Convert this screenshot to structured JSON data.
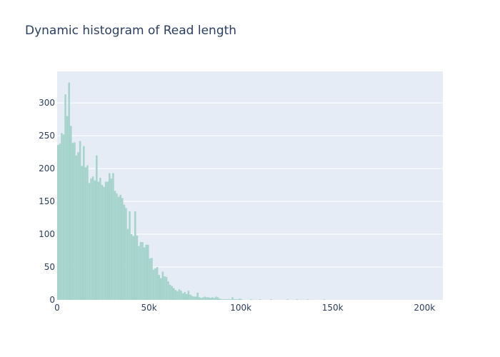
{
  "chart_data": {
    "type": "bar",
    "title": "Dynamic histogram of Read length",
    "xlabel": "",
    "ylabel": "",
    "bin_width": 1000,
    "xlim": [
      0,
      210000
    ],
    "ylim": [
      0,
      348
    ],
    "x_ticks": [
      {
        "value": 0,
        "label": "0"
      },
      {
        "value": 50000,
        "label": "50k"
      },
      {
        "value": 100000,
        "label": "100k"
      },
      {
        "value": 150000,
        "label": "150k"
      },
      {
        "value": 200000,
        "label": "200k"
      }
    ],
    "y_ticks": [
      {
        "value": 0,
        "label": "0"
      },
      {
        "value": 50,
        "label": "50"
      },
      {
        "value": 100,
        "label": "100"
      },
      {
        "value": 150,
        "label": "150"
      },
      {
        "value": 200,
        "label": "200"
      },
      {
        "value": 250,
        "label": "250"
      },
      {
        "value": 300,
        "label": "300"
      }
    ],
    "grid": true,
    "colors": {
      "bar": "#a6d4cd",
      "plot_bg": "#e5ecf6",
      "grid": "#ffffff",
      "text": "#2a3f5f"
    },
    "bin_start": [
      0,
      1000,
      2000,
      3000,
      4000,
      5000,
      6000,
      7000,
      8000,
      9000,
      10000,
      11000,
      12000,
      13000,
      14000,
      15000,
      16000,
      17000,
      18000,
      19000,
      20000,
      21000,
      22000,
      23000,
      24000,
      25000,
      26000,
      27000,
      28000,
      29000,
      30000,
      31000,
      32000,
      33000,
      34000,
      35000,
      36000,
      37000,
      38000,
      39000,
      40000,
      41000,
      42000,
      43000,
      44000,
      45000,
      46000,
      47000,
      48000,
      49000,
      50000,
      51000,
      52000,
      53000,
      54000,
      55000,
      56000,
      57000,
      58000,
      59000,
      60000,
      61000,
      62000,
      63000,
      64000,
      65000,
      66000,
      67000,
      68000,
      69000,
      70000,
      71000,
      72000,
      73000,
      74000,
      75000,
      76000,
      77000,
      78000,
      79000,
      80000,
      81000,
      82000,
      83000,
      84000,
      85000,
      86000,
      87000,
      88000,
      89000,
      90000,
      91000,
      92000,
      93000,
      94000,
      95000,
      96000,
      97000,
      98000,
      99000,
      100000,
      105000,
      110000,
      116000,
      125000,
      130000,
      136000,
      145000
    ],
    "values": [
      236,
      238,
      254,
      252,
      313,
      280,
      331,
      265,
      239,
      240,
      220,
      225,
      242,
      204,
      234,
      202,
      205,
      178,
      185,
      188,
      182,
      220,
      180,
      186,
      175,
      172,
      180,
      180,
      193,
      185,
      193,
      166,
      162,
      157,
      160,
      155,
      145,
      140,
      108,
      135,
      100,
      97,
      135,
      98,
      82,
      88,
      88,
      80,
      84,
      84,
      63,
      64,
      46,
      48,
      50,
      38,
      33,
      43,
      36,
      35,
      28,
      23,
      21,
      18,
      15,
      13,
      16,
      14,
      10,
      12,
      9,
      14,
      8,
      6,
      5,
      5,
      11,
      4,
      3,
      4,
      5,
      4,
      4,
      3,
      4,
      3,
      5,
      4,
      2,
      1,
      1,
      1,
      1,
      1,
      1,
      4,
      1,
      1,
      1,
      2,
      1,
      1,
      1,
      1,
      1,
      1,
      1,
      1
    ]
  }
}
